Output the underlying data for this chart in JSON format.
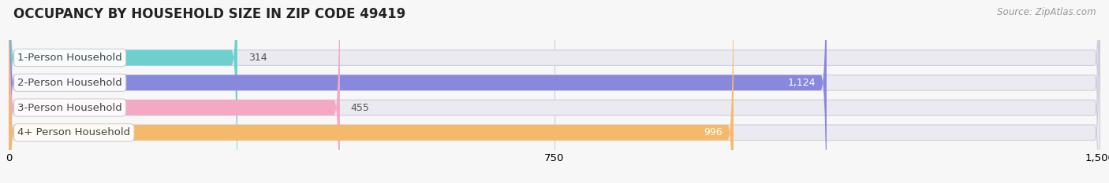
{
  "title": "OCCUPANCY BY HOUSEHOLD SIZE IN ZIP CODE 49419",
  "source": "Source: ZipAtlas.com",
  "categories": [
    "1-Person Household",
    "2-Person Household",
    "3-Person Household",
    "4+ Person Household"
  ],
  "values": [
    314,
    1124,
    455,
    996
  ],
  "bar_colors": [
    "#6ecfcf",
    "#8888dd",
    "#f4a8c4",
    "#f5b96a"
  ],
  "bar_bg_color": "#eaeaf0",
  "xlim_max": 1500,
  "xticks": [
    0,
    750,
    1500
  ],
  "title_fontsize": 12,
  "label_fontsize": 9.5,
  "value_fontsize": 9,
  "source_fontsize": 8.5,
  "background_color": "#f7f7f7",
  "title_color": "#222222",
  "source_color": "#999999",
  "label_text_color": "#444444",
  "bar_border_color": "#ccccdd"
}
